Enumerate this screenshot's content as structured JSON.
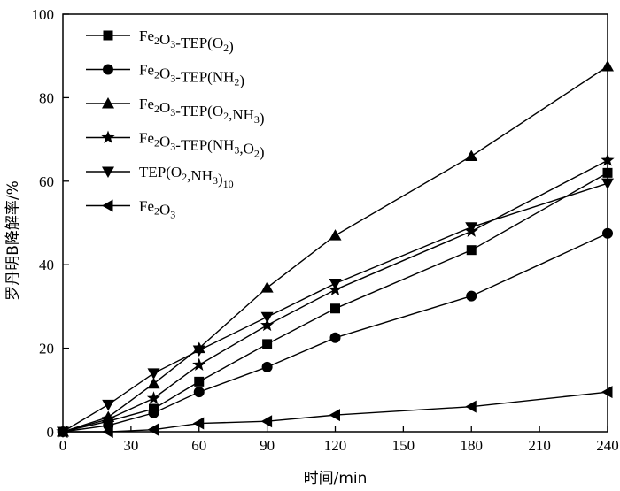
{
  "chart_data": {
    "type": "line",
    "title": "",
    "xlabel": "时间/min",
    "ylabel": "罗丹明B降解率/%",
    "xlim": [
      0,
      240
    ],
    "ylim": [
      0,
      100
    ],
    "xticks": [
      0,
      30,
      60,
      90,
      120,
      150,
      180,
      210,
      240
    ],
    "yticks": [
      0,
      20,
      40,
      60,
      80,
      100
    ],
    "grid": false,
    "legend_position": "top-left",
    "x": [
      0,
      20,
      40,
      60,
      90,
      120,
      180,
      240
    ],
    "series": [
      {
        "name": "Fe2O3-TEP(O2)",
        "label": {
          "a": "Fe",
          "a_sub": "2",
          "b": "O",
          "b_sub": "3",
          "c": "-TEP(O",
          "c_sub": "2",
          "d": ")",
          "d_sub": ""
        },
        "marker": "square",
        "values": [
          0,
          2.5,
          5.5,
          12,
          21,
          29.5,
          43.5,
          62
        ]
      },
      {
        "name": "Fe2O3-TEP(NH2)",
        "label": {
          "a": "Fe",
          "a_sub": "2",
          "b": "O",
          "b_sub": "3",
          "c": "-TEP(NH",
          "c_sub": "2",
          "d": ")",
          "d_sub": ""
        },
        "marker": "circle",
        "values": [
          0,
          1.5,
          4.5,
          9.5,
          15.5,
          22.5,
          32.5,
          47.5
        ]
      },
      {
        "name": "Fe2O3-TEP(O2,NH3)",
        "label": {
          "a": "Fe",
          "a_sub": "2",
          "b": "O",
          "b_sub": "3",
          "c": "-TEP(O",
          "c_sub": "2",
          "d": ",NH",
          "d_sub": "3",
          "e": ")"
        },
        "marker": "triangle-up",
        "values": [
          0,
          3.5,
          11.5,
          20,
          34.5,
          47,
          66,
          87.5
        ]
      },
      {
        "name": "Fe2O3-TEP(NH3,O2)",
        "label": {
          "a": "Fe",
          "a_sub": "2",
          "b": "O",
          "b_sub": "3",
          "c": "-TEP(NH",
          "c_sub": "3",
          "d": ",O",
          "d_sub": "2",
          "e": ")"
        },
        "marker": "star",
        "values": [
          0,
          3,
          8,
          16,
          25.5,
          34,
          48,
          65
        ]
      },
      {
        "name": "TEP(O2,NH3)10",
        "label": {
          "a": "TEP(O",
          "a_sub": "2",
          "b": ",NH",
          "b_sub": "3",
          "c": ")",
          "c_sub": "10"
        },
        "marker": "triangle-down",
        "values": [
          0,
          6.5,
          14,
          19.5,
          27.5,
          35.5,
          49,
          59.5
        ]
      },
      {
        "name": "Fe2O3",
        "label": {
          "a": "Fe",
          "a_sub": "2",
          "b": "O",
          "b_sub": "3"
        },
        "marker": "triangle-left",
        "values": [
          0,
          0,
          0.5,
          2,
          2.5,
          4,
          6,
          9.5
        ]
      }
    ]
  }
}
